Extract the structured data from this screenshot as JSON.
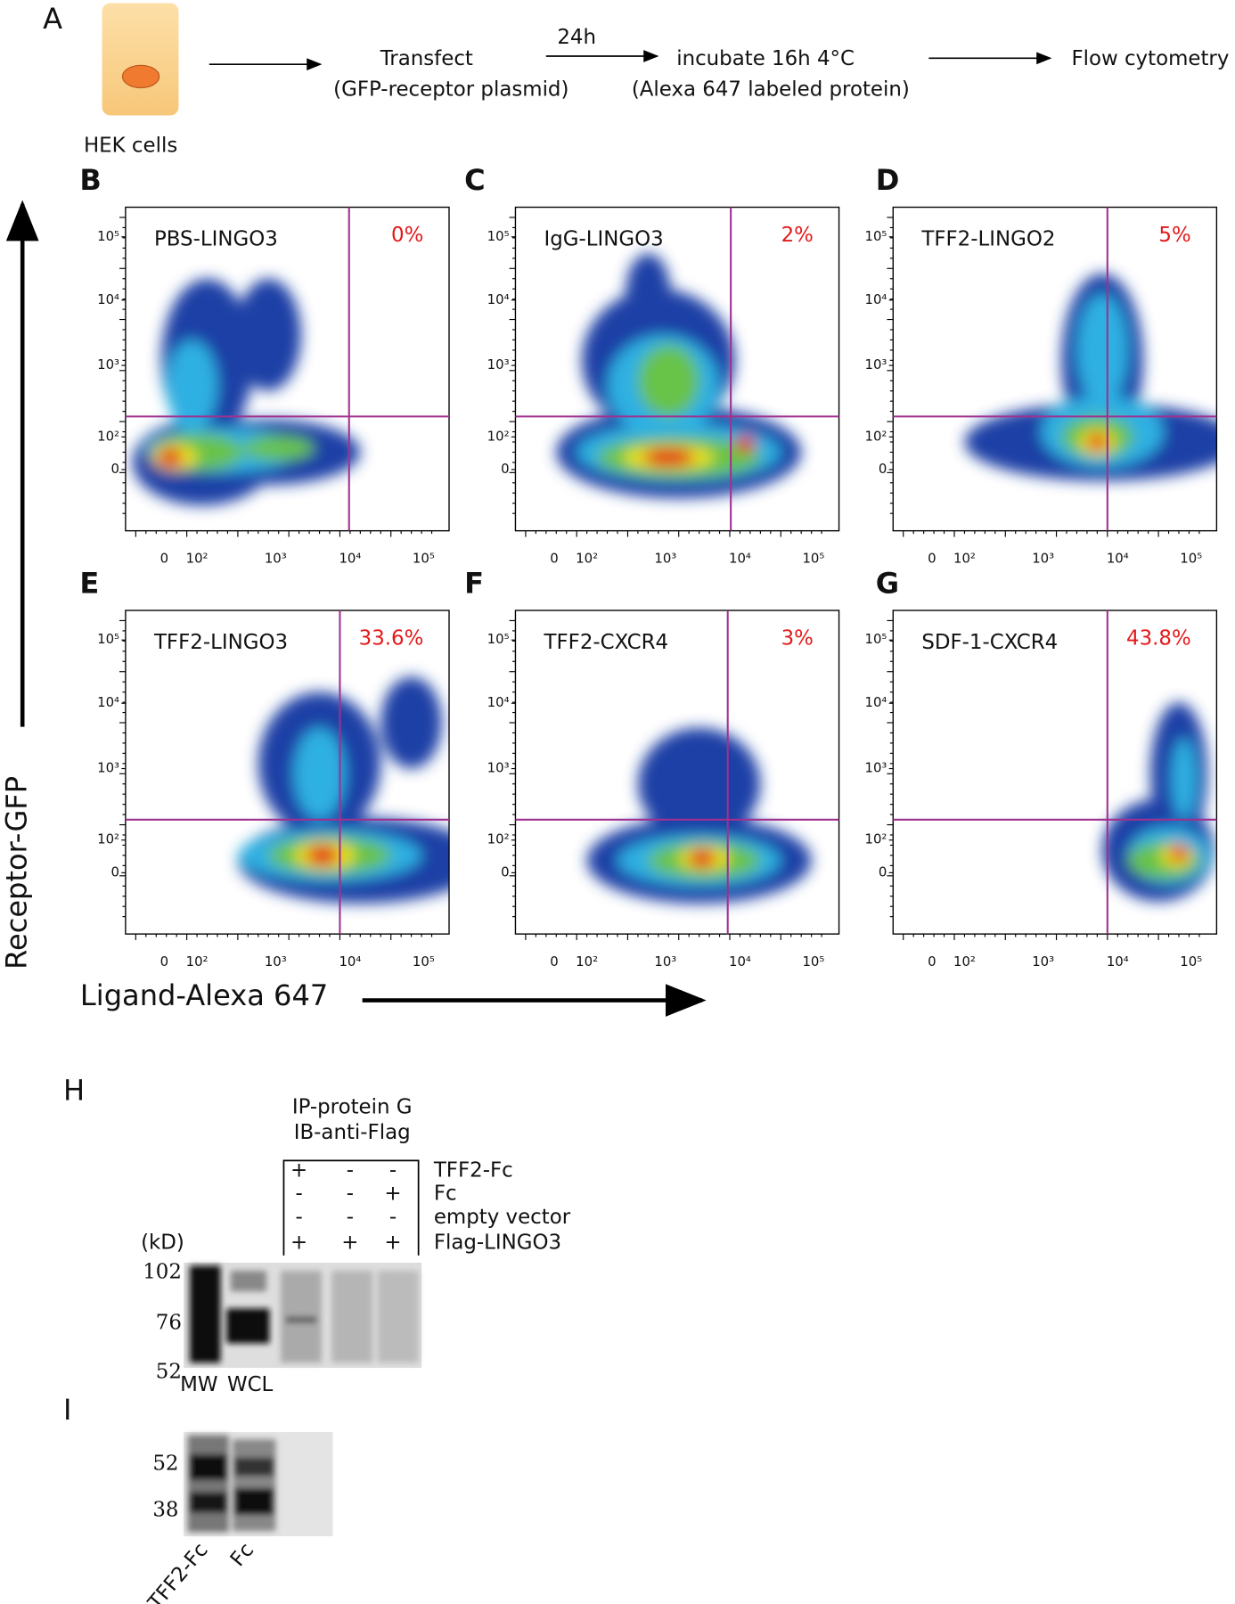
{
  "panel_a": {
    "label": "A",
    "cell_label": "HEK cells",
    "step1": {
      "text": "Transfect",
      "sub": "(GFP-receptor plasmid)"
    },
    "arrow_label": "24h",
    "step2": {
      "text": "incubate 16h 4°C",
      "sub": "(Alexa 647 labeled protein)"
    },
    "final": "Flow cytometry"
  },
  "flow": {
    "y_axis_label": "Receptor-GFP",
    "x_axis_label": "Ligand-Alexa 647",
    "y_ticks": [
      "10⁵",
      "10⁴",
      "10³",
      "10²",
      "0"
    ],
    "x_ticks": [
      "0",
      "10²",
      "10³",
      "10⁴",
      "10⁵"
    ],
    "panels": [
      {
        "label": "B",
        "name": "PBS-LINGO3",
        "percent": "0%"
      },
      {
        "label": "C",
        "name": "IgG-LINGO3",
        "percent": "2%"
      },
      {
        "label": "D",
        "name": "TFF2-LINGO2",
        "percent": "5%"
      },
      {
        "label": "E",
        "name": "TFF2-LINGO3",
        "percent": "33.6%"
      },
      {
        "label": "F",
        "name": "TFF2-CXCR4",
        "percent": "3%"
      },
      {
        "label": "G",
        "name": "SDF-1-CXCR4",
        "percent": "43.8%"
      }
    ]
  },
  "panel_h": {
    "label": "H",
    "heading": [
      "IP-protein G",
      "IB-anti-Flag"
    ],
    "rows": [
      {
        "name": "TFF2-Fc",
        "signs": [
          "+",
          "-",
          "-"
        ]
      },
      {
        "name": "Fc",
        "signs": [
          "-",
          "-",
          "+"
        ]
      },
      {
        "name": "empty vector",
        "signs": [
          "-",
          "-",
          "-"
        ]
      },
      {
        "name": "Flag-LINGO3",
        "signs": [
          "+",
          "+",
          "+"
        ]
      }
    ],
    "unit": "(kD)",
    "markers": [
      "102",
      "76",
      "52"
    ],
    "lanes": [
      "MW",
      "WCL"
    ]
  },
  "panel_i": {
    "label": "I",
    "markers": [
      "52",
      "38"
    ],
    "lanes": [
      "TFF2-Fc",
      "Fc"
    ]
  }
}
